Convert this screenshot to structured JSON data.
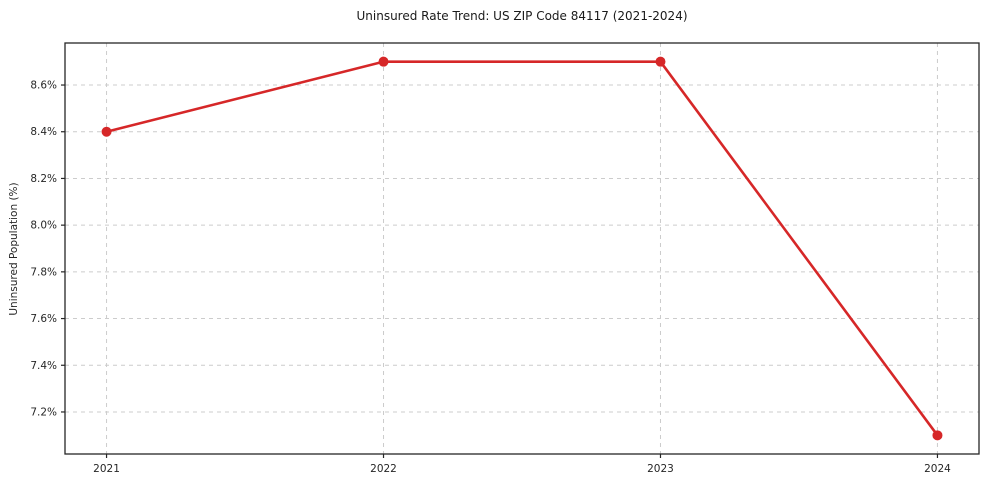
{
  "chart_data": {
    "type": "line",
    "title": "Uninsured Rate Trend: US ZIP Code 84117 (2021-2024)",
    "xlabel": "",
    "ylabel": "Uninsured Population (%)",
    "x": [
      2021,
      2022,
      2023,
      2024
    ],
    "x_tick_labels": [
      "2021",
      "2022",
      "2023",
      "2024"
    ],
    "series": [
      {
        "name": "Uninsured Population (%)",
        "values": [
          8.4,
          8.7,
          8.7,
          7.1
        ],
        "color": "#d62728"
      }
    ],
    "y_ticks": [
      7.2,
      7.4,
      7.6,
      7.8,
      8.0,
      8.2,
      8.4,
      8.6
    ],
    "y_tick_labels": [
      "7.2%",
      "7.4%",
      "7.6%",
      "7.8%",
      "8.0%",
      "8.2%",
      "8.4%",
      "8.6%"
    ],
    "xlim": [
      2020.85,
      2024.15
    ],
    "ylim": [
      7.02,
      8.78
    ],
    "grid": true,
    "grid_style": "dashed",
    "legend": false,
    "colors": {
      "line": "#d62728",
      "grid": "#cccccc",
      "axis": "#262626",
      "title_text": "#1a1a1a",
      "background": "#ffffff"
    }
  }
}
